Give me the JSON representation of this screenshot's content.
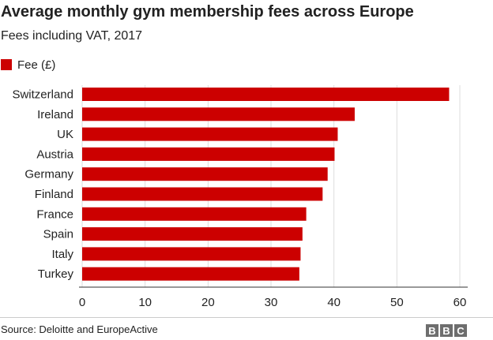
{
  "chart_data": {
    "type": "bar",
    "orientation": "horizontal",
    "title": "Average monthly gym membership fees across Europe",
    "subtitle": "Fees including VAT, 2017",
    "categories": [
      "Switzerland",
      "Ireland",
      "UK",
      "Austria",
      "Germany",
      "Finland",
      "France",
      "Spain",
      "Italy",
      "Turkey"
    ],
    "series": [
      {
        "name": "Fee (£)",
        "color": "#cc0000",
        "values": [
          58.3,
          43.3,
          40.6,
          40.1,
          39.0,
          38.2,
          35.6,
          35.0,
          34.7,
          34.5
        ]
      }
    ],
    "xlim": [
      0,
      60
    ],
    "xticks": [
      "0",
      "10",
      "20",
      "30",
      "40",
      "50",
      "60"
    ],
    "xlabel": "",
    "ylabel": "",
    "grid": true,
    "legend": "top-left"
  },
  "footer": {
    "source": "Source: Deloitte and EuropeActive",
    "logo_letters": [
      "B",
      "B",
      "C"
    ]
  }
}
